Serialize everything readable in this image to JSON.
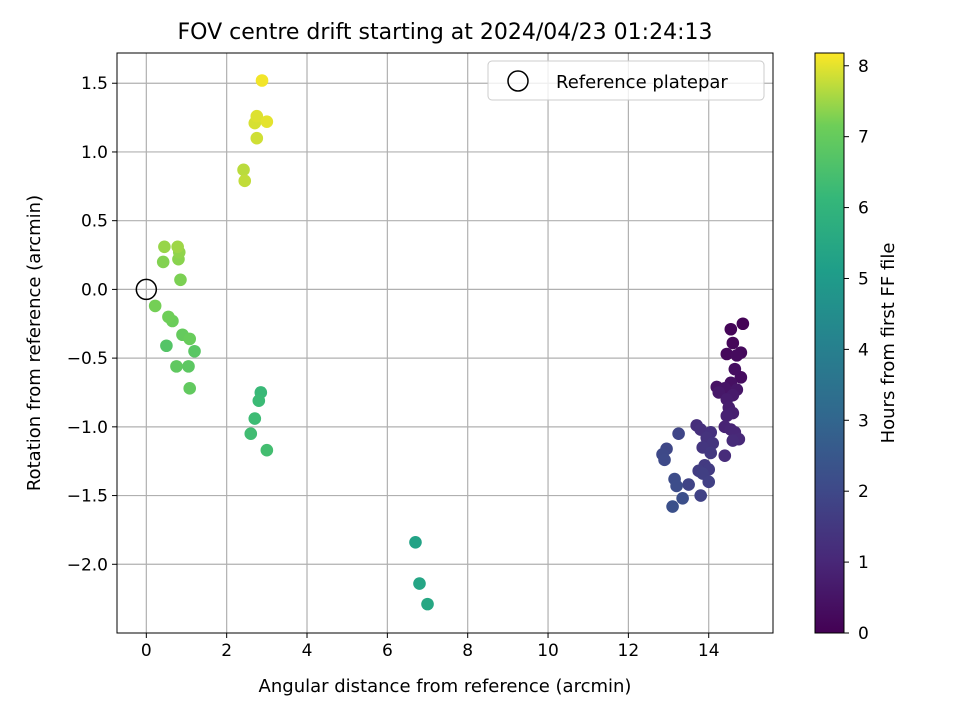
{
  "chart_data": {
    "type": "scatter",
    "title": "FOV centre drift starting at 2024/04/23 01:24:13",
    "xlabel": "Angular distance from reference (arcmin)",
    "ylabel": "Rotation from reference (arcmin)",
    "xlim": [
      -0.73,
      15.6
    ],
    "ylim": [
      -2.5,
      1.72
    ],
    "xticks": [
      0,
      2,
      4,
      6,
      8,
      10,
      12,
      14
    ],
    "yticks": [
      -2.0,
      -1.5,
      -1.0,
      -0.5,
      0.0,
      0.5,
      1.0,
      1.5
    ],
    "xtick_labels": [
      "0",
      "2",
      "4",
      "6",
      "8",
      "10",
      "12",
      "14"
    ],
    "ytick_labels": [
      "−2.0",
      "−1.5",
      "−1.0",
      "−0.5",
      "0.0",
      "0.5",
      "1.0",
      "1.5"
    ],
    "grid": true,
    "legend": {
      "placement": "top-right",
      "entries": [
        {
          "label": "Reference platepar",
          "marker": "open-circle"
        }
      ]
    },
    "reference_point": {
      "x": 0.0,
      "y": 0.0
    },
    "colorbar": {
      "label": "Hours from first FF file",
      "range": [
        0,
        8.18
      ],
      "colormap": "viridis",
      "ticks": [
        0,
        1,
        2,
        3,
        4,
        5,
        6,
        7,
        8
      ],
      "tick_labels": [
        "0",
        "1",
        "2",
        "3",
        "4",
        "5",
        "6",
        "7",
        "8"
      ]
    },
    "points": [
      {
        "x": 14.85,
        "y": -0.25,
        "c": 0.05
      },
      {
        "x": 14.55,
        "y": -0.29,
        "c": 0.1
      },
      {
        "x": 14.6,
        "y": -0.39,
        "c": 0.15
      },
      {
        "x": 14.45,
        "y": -0.47,
        "c": 0.2
      },
      {
        "x": 14.8,
        "y": -0.46,
        "c": 0.22
      },
      {
        "x": 14.7,
        "y": -0.48,
        "c": 0.25
      },
      {
        "x": 14.8,
        "y": -0.64,
        "c": 0.3
      },
      {
        "x": 14.65,
        "y": -0.58,
        "c": 0.35
      },
      {
        "x": 14.55,
        "y": -0.68,
        "c": 0.4
      },
      {
        "x": 14.2,
        "y": -0.71,
        "c": 0.45
      },
      {
        "x": 14.4,
        "y": -0.72,
        "c": 0.5
      },
      {
        "x": 14.7,
        "y": -0.73,
        "c": 0.55
      },
      {
        "x": 14.25,
        "y": -0.75,
        "c": 0.6
      },
      {
        "x": 14.6,
        "y": -0.77,
        "c": 0.65
      },
      {
        "x": 14.45,
        "y": -0.8,
        "c": 0.7
      },
      {
        "x": 14.5,
        "y": -0.86,
        "c": 0.75
      },
      {
        "x": 14.6,
        "y": -0.9,
        "c": 0.8
      },
      {
        "x": 14.45,
        "y": -0.92,
        "c": 0.85
      },
      {
        "x": 14.4,
        "y": -1.0,
        "c": 0.9
      },
      {
        "x": 14.55,
        "y": -1.02,
        "c": 0.95
      },
      {
        "x": 14.65,
        "y": -1.04,
        "c": 1.0
      },
      {
        "x": 14.75,
        "y": -1.09,
        "c": 1.05
      },
      {
        "x": 14.6,
        "y": -1.1,
        "c": 1.1
      },
      {
        "x": 14.4,
        "y": -1.21,
        "c": 1.15
      },
      {
        "x": 13.7,
        "y": -0.99,
        "c": 1.2
      },
      {
        "x": 13.8,
        "y": -1.02,
        "c": 1.25
      },
      {
        "x": 14.05,
        "y": -1.04,
        "c": 1.3
      },
      {
        "x": 13.95,
        "y": -1.08,
        "c": 1.35
      },
      {
        "x": 14.1,
        "y": -1.12,
        "c": 1.4
      },
      {
        "x": 13.85,
        "y": -1.15,
        "c": 1.45
      },
      {
        "x": 14.05,
        "y": -1.19,
        "c": 1.5
      },
      {
        "x": 13.9,
        "y": -1.28,
        "c": 1.55
      },
      {
        "x": 14.0,
        "y": -1.31,
        "c": 1.6
      },
      {
        "x": 13.75,
        "y": -1.32,
        "c": 1.65
      },
      {
        "x": 13.85,
        "y": -1.34,
        "c": 1.7
      },
      {
        "x": 14.0,
        "y": -1.4,
        "c": 1.75
      },
      {
        "x": 13.8,
        "y": -1.5,
        "c": 1.8
      },
      {
        "x": 13.5,
        "y": -1.42,
        "c": 1.85
      },
      {
        "x": 13.25,
        "y": -1.05,
        "c": 1.9
      },
      {
        "x": 12.95,
        "y": -1.16,
        "c": 1.95
      },
      {
        "x": 12.85,
        "y": -1.2,
        "c": 2.0
      },
      {
        "x": 12.9,
        "y": -1.24,
        "c": 2.05
      },
      {
        "x": 13.15,
        "y": -1.38,
        "c": 2.1
      },
      {
        "x": 13.2,
        "y": -1.43,
        "c": 2.15
      },
      {
        "x": 13.35,
        "y": -1.52,
        "c": 2.2
      },
      {
        "x": 13.1,
        "y": -1.58,
        "c": 2.25
      },
      {
        "x": 6.7,
        "y": -1.84,
        "c": 5.3
      },
      {
        "x": 6.8,
        "y": -2.14,
        "c": 5.4
      },
      {
        "x": 7.0,
        "y": -2.29,
        "c": 5.5
      },
      {
        "x": 2.85,
        "y": -0.75,
        "c": 6.2
      },
      {
        "x": 2.8,
        "y": -0.81,
        "c": 6.25
      },
      {
        "x": 2.7,
        "y": -0.94,
        "c": 6.3
      },
      {
        "x": 2.6,
        "y": -1.05,
        "c": 6.35
      },
      {
        "x": 3.0,
        "y": -1.17,
        "c": 6.4
      },
      {
        "x": 0.5,
        "y": -0.41,
        "c": 6.7
      },
      {
        "x": 1.2,
        "y": -0.45,
        "c": 6.8
      },
      {
        "x": 1.05,
        "y": -0.56,
        "c": 6.85
      },
      {
        "x": 0.75,
        "y": -0.56,
        "c": 6.9
      },
      {
        "x": 1.08,
        "y": -0.72,
        "c": 6.95
      },
      {
        "x": 0.9,
        "y": -0.33,
        "c": 7.0
      },
      {
        "x": 1.08,
        "y": -0.36,
        "c": 7.05
      },
      {
        "x": 0.65,
        "y": -0.23,
        "c": 7.1
      },
      {
        "x": 0.55,
        "y": -0.2,
        "c": 7.15
      },
      {
        "x": 0.22,
        "y": -0.12,
        "c": 7.2
      },
      {
        "x": 0.85,
        "y": 0.07,
        "c": 7.25
      },
      {
        "x": 0.42,
        "y": 0.2,
        "c": 7.3
      },
      {
        "x": 0.8,
        "y": 0.22,
        "c": 7.35
      },
      {
        "x": 0.82,
        "y": 0.27,
        "c": 7.4
      },
      {
        "x": 0.45,
        "y": 0.31,
        "c": 7.45
      },
      {
        "x": 0.78,
        "y": 0.31,
        "c": 7.5
      },
      {
        "x": 2.42,
        "y": 0.87,
        "c": 7.7
      },
      {
        "x": 2.45,
        "y": 0.79,
        "c": 7.75
      },
      {
        "x": 2.75,
        "y": 1.1,
        "c": 7.85
      },
      {
        "x": 2.7,
        "y": 1.21,
        "c": 7.9
      },
      {
        "x": 2.75,
        "y": 1.26,
        "c": 7.95
      },
      {
        "x": 3.0,
        "y": 1.22,
        "c": 8.0
      },
      {
        "x": 2.88,
        "y": 1.52,
        "c": 8.1
      }
    ]
  }
}
